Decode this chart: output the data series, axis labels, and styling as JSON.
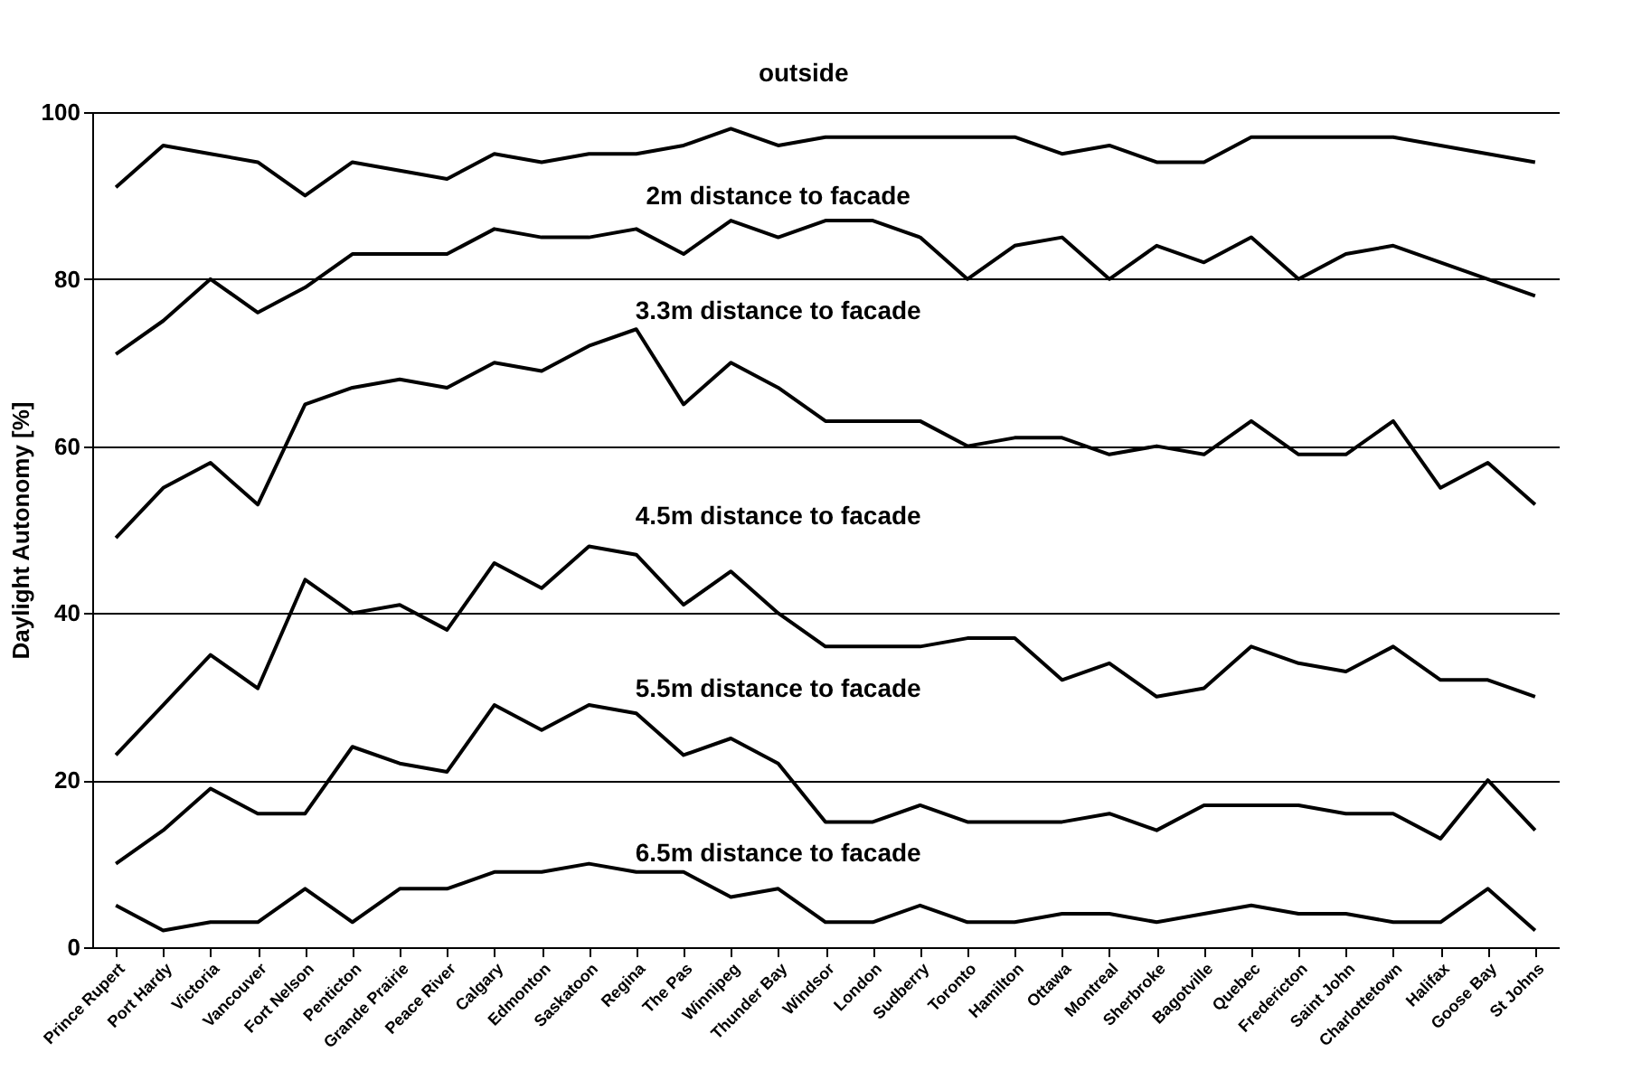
{
  "chart_data": {
    "type": "line",
    "ylabel": "Daylight Autonomy [%]",
    "categories": [
      "Prince Rupert",
      "Port Hardy",
      "Victoria",
      "Vancouver",
      "Fort Nelson",
      "Penticton",
      "Grande Prairie",
      "Peace River",
      "Calgary",
      "Edmonton",
      "Saskatoon",
      "Regina",
      "The Pas",
      "Winnipeg",
      "Thunder Bay",
      "Windsor",
      "London",
      "Sudberry",
      "Toronto",
      "Hamilton",
      "Ottawa",
      "Montreal",
      "Sherbroke",
      "Bagotville",
      "Quebec",
      "Fredericton",
      "Saint John",
      "Charlottetown",
      "Halifax",
      "Goose Bay",
      "St Johns"
    ],
    "series": [
      {
        "name": "outside",
        "color": "#000000",
        "values": [
          91,
          96,
          95,
          94,
          90,
          94,
          93,
          92,
          95,
          94,
          95,
          95,
          96,
          98,
          96,
          97,
          97,
          97,
          97,
          97,
          95,
          96,
          94,
          94,
          97,
          97,
          97,
          97,
          96,
          95,
          94
        ]
      },
      {
        "name": "2m distance to facade",
        "color": "#000000",
        "values": [
          71,
          75,
          80,
          76,
          79,
          83,
          83,
          83,
          86,
          85,
          85,
          86,
          83,
          87,
          85,
          87,
          87,
          85,
          80,
          84,
          85,
          80,
          84,
          82,
          85,
          80,
          83,
          84,
          82,
          80,
          78
        ]
      },
      {
        "name": "3.3m distance to facade",
        "color": "#000000",
        "values": [
          49,
          55,
          58,
          53,
          65,
          67,
          68,
          67,
          70,
          69,
          72,
          74,
          65,
          70,
          67,
          63,
          63,
          63,
          60,
          61,
          61,
          59,
          60,
          59,
          63,
          59,
          59,
          63,
          55,
          58,
          53
        ]
      },
      {
        "name": "4.5m distance to facade",
        "color": "#000000",
        "values": [
          23,
          29,
          35,
          31,
          44,
          40,
          41,
          38,
          46,
          43,
          48,
          47,
          41,
          45,
          40,
          36,
          36,
          36,
          37,
          37,
          32,
          34,
          30,
          31,
          36,
          34,
          33,
          36,
          32,
          32,
          30
        ]
      },
      {
        "name": "5.5m distance to facade",
        "color": "#000000",
        "values": [
          10,
          14,
          19,
          16,
          16,
          24,
          22,
          21,
          29,
          26,
          29,
          28,
          23,
          25,
          22,
          15,
          15,
          17,
          15,
          15,
          15,
          16,
          14,
          17,
          17,
          17,
          16,
          16,
          13,
          20,
          14
        ]
      },
      {
        "name": "6.5m distance to facade",
        "color": "#000000",
        "values": [
          5,
          2,
          3,
          3,
          7,
          3,
          7,
          7,
          9,
          9,
          10,
          9,
          9,
          6,
          7,
          3,
          3,
          5,
          3,
          3,
          4,
          4,
          3,
          4,
          5,
          4,
          4,
          3,
          3,
          7,
          2
        ]
      }
    ],
    "ylim": [
      0,
      100
    ],
    "yticks": [
      0,
      20,
      40,
      60,
      80,
      100
    ],
    "grid": "y",
    "marker": "none",
    "line_style": "solid"
  }
}
